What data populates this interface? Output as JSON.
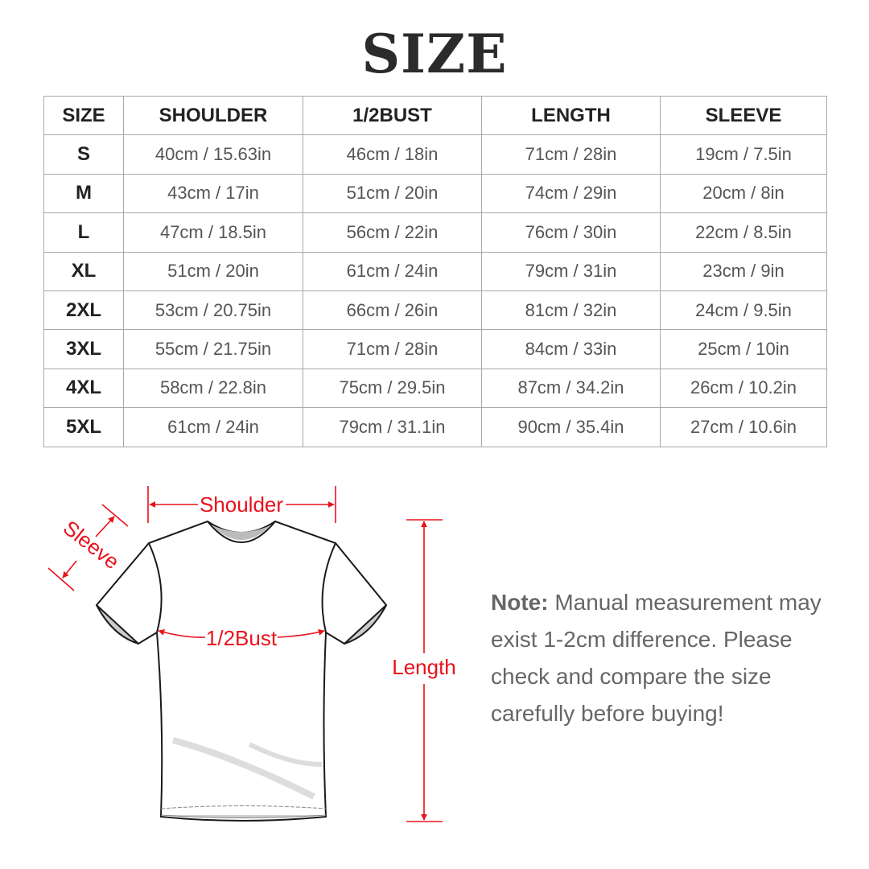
{
  "title": "SIZE",
  "table": {
    "headers": [
      "SIZE",
      "SHOULDER",
      "1/2BUST",
      "LENGTH",
      "SLEEVE"
    ],
    "rows": [
      [
        "S",
        "40cm / 15.63in",
        "46cm / 18in",
        "71cm / 28in",
        "19cm / 7.5in"
      ],
      [
        "M",
        "43cm / 17in",
        "51cm / 20in",
        "74cm / 29in",
        "20cm / 8in"
      ],
      [
        "L",
        "47cm / 18.5in",
        "56cm / 22in",
        "76cm / 30in",
        "22cm / 8.5in"
      ],
      [
        "XL",
        "51cm / 20in",
        "61cm / 24in",
        "79cm / 31in",
        "23cm / 9in"
      ],
      [
        "2XL",
        "53cm / 20.75in",
        "66cm / 26in",
        "81cm / 32in",
        "24cm / 9.5in"
      ],
      [
        "3XL",
        "55cm / 21.75in",
        "71cm / 28in",
        "84cm / 33in",
        "25cm / 10in"
      ],
      [
        "4XL",
        "58cm / 22.8in",
        "75cm / 29.5in",
        "87cm / 34.2in",
        "26cm / 10.2in"
      ],
      [
        "5XL",
        "61cm / 24in",
        "79cm / 31.1in",
        "90cm / 35.4in",
        "27cm / 10.6in"
      ]
    ]
  },
  "diagram": {
    "labels": {
      "shoulder": "Shoulder",
      "sleeve": "Sleeve",
      "bust": "1/2Bust",
      "length": "Length"
    },
    "accent_color": "#e8121c"
  },
  "note": {
    "label": "Note:",
    "text": " Manual measurement may exist 1-2cm difference. Please check and compare the size carefully before buying!"
  }
}
